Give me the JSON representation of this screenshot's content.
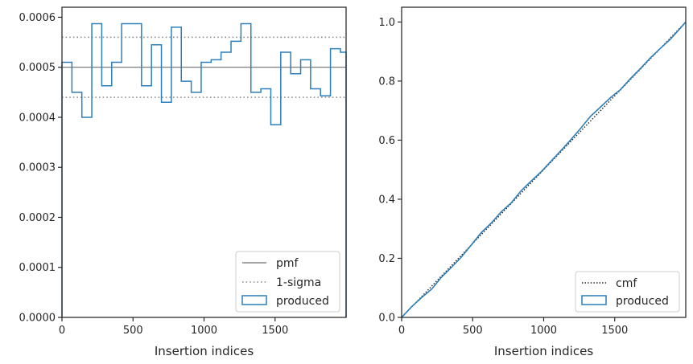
{
  "colors": {
    "hist": "#2c7fb8",
    "pmf": "#6e6e6e",
    "sigma": "#8c8c8c",
    "cmf": "#1a1a1a",
    "axis": "#262626"
  },
  "chart_data": [
    {
      "type": "histogram-step",
      "title": "",
      "xlabel": "Insertion indices",
      "ylabel": "",
      "xlim": [
        0,
        2000
      ],
      "ylim": [
        0,
        0.00062
      ],
      "xticks": [
        0,
        500,
        1000,
        1500
      ],
      "xtick_labels": [
        "0",
        "500",
        "1000",
        "1500"
      ],
      "yticks": [
        0,
        0.0001,
        0.0002,
        0.0003,
        0.0004,
        0.0005,
        0.0006
      ],
      "ytick_labels": [
        "0.0000",
        "0.0001",
        "0.0002",
        "0.0003",
        "0.0004",
        "0.0005",
        "0.0006"
      ],
      "bin_edges": [
        0,
        70,
        140,
        210,
        280,
        350,
        420,
        490,
        560,
        630,
        700,
        770,
        840,
        910,
        980,
        1050,
        1120,
        1190,
        1260,
        1330,
        1400,
        1470,
        1540,
        1610,
        1680,
        1750,
        1820,
        1890,
        1960,
        2000
      ],
      "series": [
        {
          "name": "produced",
          "values": [
            0.00051,
            0.00045,
            0.0004,
            0.000587,
            0.000463,
            0.00051,
            0.000587,
            0.000587,
            0.000463,
            0.000545,
            0.00043,
            0.00058,
            0.000472,
            0.00045,
            0.00051,
            0.000515,
            0.00053,
            0.000552,
            0.000587,
            0.00045,
            0.000457,
            0.000385,
            0.00053,
            0.000487,
            0.000515,
            0.000457,
            0.000443,
            0.000537,
            0.00053
          ]
        }
      ],
      "reference_lines": [
        {
          "name": "pmf",
          "y": 0.0005,
          "style": "solid"
        },
        {
          "name": "1-sigma",
          "y": [
            0.00044,
            0.00056
          ],
          "style": "dotted"
        }
      ],
      "legend": {
        "position": "lower-right",
        "entries": [
          "pmf",
          "1-sigma",
          "produced"
        ]
      }
    },
    {
      "type": "line",
      "title": "",
      "xlabel": "Insertion indices",
      "ylabel": "",
      "xlim": [
        0,
        2000
      ],
      "ylim": [
        0,
        1.05
      ],
      "xticks": [
        0,
        500,
        1000,
        1500
      ],
      "xtick_labels": [
        "0",
        "500",
        "1000",
        "1500"
      ],
      "yticks": [
        0,
        0.2,
        0.4,
        0.6,
        0.8,
        1.0
      ],
      "ytick_labels": [
        "0.0",
        "0.2",
        "0.4",
        "0.6",
        "0.8",
        "1.0"
      ],
      "series": [
        {
          "name": "cmf",
          "style": "dotted",
          "x": [
            0,
            2000
          ],
          "y": [
            0,
            1.0
          ]
        },
        {
          "name": "produced",
          "style": "step",
          "x": [
            0,
            70,
            140,
            210,
            280,
            350,
            420,
            490,
            560,
            630,
            700,
            770,
            840,
            910,
            980,
            1050,
            1120,
            1190,
            1260,
            1330,
            1400,
            1470,
            1540,
            1610,
            1680,
            1750,
            1820,
            1890,
            1960,
            2000
          ],
          "y": [
            0,
            0.036,
            0.067,
            0.095,
            0.136,
            0.169,
            0.204,
            0.245,
            0.287,
            0.319,
            0.357,
            0.387,
            0.428,
            0.461,
            0.492,
            0.528,
            0.564,
            0.601,
            0.64,
            0.681,
            0.712,
            0.744,
            0.771,
            0.808,
            0.842,
            0.878,
            0.91,
            0.941,
            0.978,
            1.0
          ]
        }
      ],
      "legend": {
        "position": "lower-right",
        "entries": [
          "cmf",
          "produced"
        ]
      }
    }
  ]
}
